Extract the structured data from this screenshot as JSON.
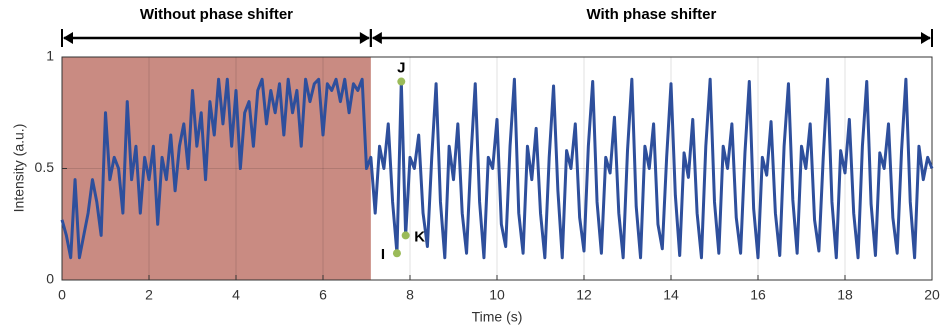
{
  "chart_data": {
    "type": "line",
    "xlabel": "Time (s)",
    "ylabel": "Intensity (a.u.)",
    "xlim": [
      0,
      20
    ],
    "xticks": [
      0,
      2,
      4,
      6,
      8,
      10,
      12,
      14,
      16,
      18,
      20
    ],
    "ylim": [
      0,
      1
    ],
    "yticks": [
      0,
      0.5,
      1
    ],
    "grid": true,
    "x": [
      0,
      0.1,
      0.2,
      0.3,
      0.4,
      0.5,
      0.6,
      0.7,
      0.8,
      0.9,
      1,
      1.1,
      1.2,
      1.3,
      1.4,
      1.5,
      1.6,
      1.7,
      1.8,
      1.9,
      2,
      2.1,
      2.2,
      2.3,
      2.4,
      2.5,
      2.6,
      2.7,
      2.8,
      2.9,
      3,
      3.1,
      3.2,
      3.3,
      3.4,
      3.5,
      3.6,
      3.7,
      3.8,
      3.9,
      4,
      4.1,
      4.2,
      4.3,
      4.4,
      4.5,
      4.6,
      4.7,
      4.8,
      4.9,
      5,
      5.1,
      5.2,
      5.3,
      5.4,
      5.5,
      5.6,
      5.7,
      5.8,
      5.9,
      6,
      6.1,
      6.2,
      6.3,
      6.4,
      6.5,
      6.6,
      6.7,
      6.8,
      6.9,
      7,
      7.1,
      7.2,
      7.3,
      7.4,
      7.5,
      7.6,
      7.7,
      7.8,
      7.9,
      8,
      8.1,
      8.2,
      8.3,
      8.4,
      8.5,
      8.6,
      8.7,
      8.8,
      8.9,
      9,
      9.1,
      9.2,
      9.3,
      9.4,
      9.5,
      9.6,
      9.7,
      9.8,
      9.9,
      10,
      10.1,
      10.2,
      10.3,
      10.4,
      10.5,
      10.6,
      10.7,
      10.8,
      10.9,
      11,
      11.1,
      11.2,
      11.3,
      11.4,
      11.5,
      11.6,
      11.7,
      11.8,
      11.9,
      12,
      12.1,
      12.2,
      12.3,
      12.4,
      12.5,
      12.6,
      12.7,
      12.8,
      12.9,
      13,
      13.1,
      13.2,
      13.3,
      13.4,
      13.5,
      13.6,
      13.7,
      13.8,
      13.9,
      14,
      14.1,
      14.2,
      14.3,
      14.4,
      14.5,
      14.6,
      14.7,
      14.8,
      14.9,
      15,
      15.1,
      15.2,
      15.3,
      15.4,
      15.5,
      15.6,
      15.7,
      15.8,
      15.9,
      16,
      16.1,
      16.2,
      16.3,
      16.4,
      16.5,
      16.6,
      16.7,
      16.8,
      16.9,
      17,
      17.1,
      17.2,
      17.3,
      17.4,
      17.5,
      17.6,
      17.7,
      17.8,
      17.9,
      18,
      18.1,
      18.2,
      18.3,
      18.4,
      18.5,
      18.6,
      18.7,
      18.8,
      18.9,
      19,
      19.1,
      19.2,
      19.3,
      19.4,
      19.5,
      19.6,
      19.7,
      19.8,
      19.9,
      20
    ],
    "series": [
      {
        "color": "#2e4f9c",
        "values": [
          0.27,
          0.2,
          0.1,
          0.45,
          0.1,
          0.2,
          0.3,
          0.45,
          0.35,
          0.2,
          0.75,
          0.45,
          0.55,
          0.5,
          0.3,
          0.8,
          0.45,
          0.6,
          0.3,
          0.55,
          0.45,
          0.6,
          0.25,
          0.55,
          0.45,
          0.65,
          0.4,
          0.6,
          0.7,
          0.5,
          0.85,
          0.6,
          0.75,
          0.45,
          0.8,
          0.65,
          0.9,
          0.7,
          0.9,
          0.6,
          0.85,
          0.5,
          0.75,
          0.8,
          0.6,
          0.85,
          0.9,
          0.7,
          0.85,
          0.75,
          0.88,
          0.65,
          0.9,
          0.75,
          0.85,
          0.6,
          0.9,
          0.8,
          0.88,
          0.9,
          0.65,
          0.88,
          0.85,
          0.9,
          0.8,
          0.9,
          0.75,
          0.88,
          0.85,
          0.9,
          0.5,
          0.55,
          0.3,
          0.6,
          0.5,
          0.7,
          0.35,
          0.12,
          0.89,
          0.2,
          0.55,
          0.5,
          0.65,
          0.3,
          0.15,
          0.55,
          0.88,
          0.35,
          0.1,
          0.6,
          0.45,
          0.7,
          0.3,
          0.12,
          0.55,
          0.88,
          0.35,
          0.1,
          0.55,
          0.5,
          0.72,
          0.25,
          0.15,
          0.6,
          0.9,
          0.3,
          0.12,
          0.6,
          0.45,
          0.68,
          0.3,
          0.1,
          0.55,
          0.87,
          0.4,
          0.1,
          0.58,
          0.5,
          0.7,
          0.28,
          0.13,
          0.6,
          0.89,
          0.35,
          0.12,
          0.55,
          0.48,
          0.73,
          0.3,
          0.1,
          0.58,
          0.9,
          0.33,
          0.1,
          0.6,
          0.5,
          0.7,
          0.25,
          0.14,
          0.55,
          0.88,
          0.38,
          0.11,
          0.57,
          0.46,
          0.72,
          0.3,
          0.1,
          0.6,
          0.9,
          0.35,
          0.12,
          0.6,
          0.5,
          0.7,
          0.28,
          0.12,
          0.57,
          0.89,
          0.32,
          0.1,
          0.55,
          0.47,
          0.71,
          0.3,
          0.11,
          0.6,
          0.88,
          0.36,
          0.12,
          0.6,
          0.5,
          0.7,
          0.27,
          0.13,
          0.55,
          0.9,
          0.35,
          0.1,
          0.58,
          0.48,
          0.72,
          0.3,
          0.1,
          0.6,
          0.89,
          0.34,
          0.11,
          0.57,
          0.5,
          0.7,
          0.28,
          0.12,
          0.58,
          0.9,
          0.35,
          0.1,
          0.6,
          0.45,
          0.55,
          0.5
        ]
      }
    ],
    "shaded_region": {
      "x": [
        0,
        7.1
      ],
      "color": "#c98b82"
    },
    "spans": [
      {
        "label": "Without phase shifter",
        "x": [
          0,
          7.1
        ]
      },
      {
        "label": "With phase shifter",
        "x": [
          7.1,
          20
        ]
      }
    ],
    "markers": [
      {
        "label": "I",
        "x": 7.7,
        "y": 0.12
      },
      {
        "label": "J",
        "x": 7.8,
        "y": 0.89
      },
      {
        "label": "K",
        "x": 7.9,
        "y": 0.2
      }
    ],
    "marker_color": "#9bbb59"
  }
}
